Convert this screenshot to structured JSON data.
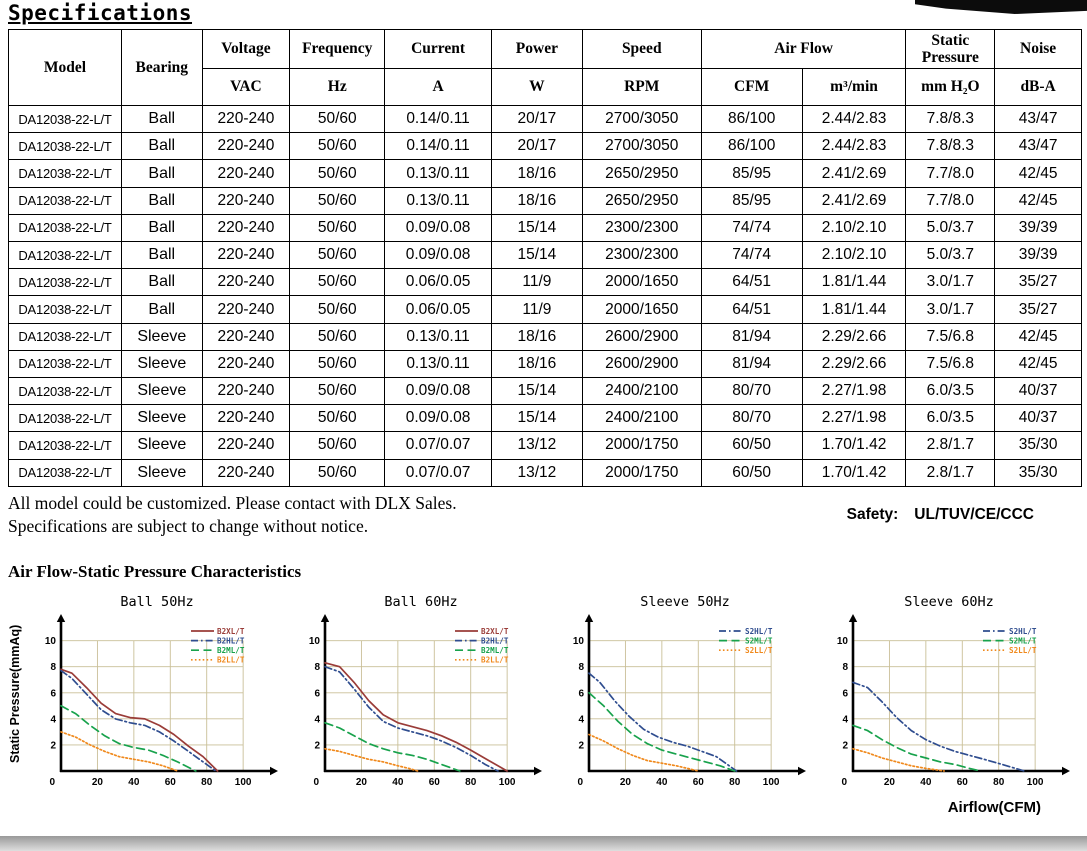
{
  "page": {
    "title": "Specifications"
  },
  "table": {
    "header_row1": [
      {
        "label": "Model",
        "rowspan": 2
      },
      {
        "label": "Bearing",
        "rowspan": 2
      },
      {
        "label": "Voltage"
      },
      {
        "label": "Frequency"
      },
      {
        "label": "Current"
      },
      {
        "label": "Power"
      },
      {
        "label": "Speed"
      },
      {
        "label": "Air Flow",
        "colspan": 2
      },
      {
        "label": "Static Pressure"
      },
      {
        "label": "Noise"
      }
    ],
    "header_row2": [
      "VAC",
      "Hz",
      "A",
      "W",
      "RPM",
      "CFM",
      "m³/min",
      "mm H₂O",
      "dB-A"
    ],
    "rows": [
      [
        "DA12038-22-L/T",
        "Ball",
        "220-240",
        "50/60",
        "0.14/0.11",
        "20/17",
        "2700/3050",
        "86/100",
        "2.44/2.83",
        "7.8/8.3",
        "43/47"
      ],
      [
        "DA12038-22-L/T",
        "Ball",
        "220-240",
        "50/60",
        "0.14/0.11",
        "20/17",
        "2700/3050",
        "86/100",
        "2.44/2.83",
        "7.8/8.3",
        "43/47"
      ],
      [
        "DA12038-22-L/T",
        "Ball",
        "220-240",
        "50/60",
        "0.13/0.11",
        "18/16",
        "2650/2950",
        "85/95",
        "2.41/2.69",
        "7.7/8.0",
        "42/45"
      ],
      [
        "DA12038-22-L/T",
        "Ball",
        "220-240",
        "50/60",
        "0.13/0.11",
        "18/16",
        "2650/2950",
        "85/95",
        "2.41/2.69",
        "7.7/8.0",
        "42/45"
      ],
      [
        "DA12038-22-L/T",
        "Ball",
        "220-240",
        "50/60",
        "0.09/0.08",
        "15/14",
        "2300/2300",
        "74/74",
        "2.10/2.10",
        "5.0/3.7",
        "39/39"
      ],
      [
        "DA12038-22-L/T",
        "Ball",
        "220-240",
        "50/60",
        "0.09/0.08",
        "15/14",
        "2300/2300",
        "74/74",
        "2.10/2.10",
        "5.0/3.7",
        "39/39"
      ],
      [
        "DA12038-22-L/T",
        "Ball",
        "220-240",
        "50/60",
        "0.06/0.05",
        "11/9",
        "2000/1650",
        "64/51",
        "1.81/1.44",
        "3.0/1.7",
        "35/27"
      ],
      [
        "DA12038-22-L/T",
        "Ball",
        "220-240",
        "50/60",
        "0.06/0.05",
        "11/9",
        "2000/1650",
        "64/51",
        "1.81/1.44",
        "3.0/1.7",
        "35/27"
      ],
      [
        "DA12038-22-L/T",
        "Sleeve",
        "220-240",
        "50/60",
        "0.13/0.11",
        "18/16",
        "2600/2900",
        "81/94",
        "2.29/2.66",
        "7.5/6.8",
        "42/45"
      ],
      [
        "DA12038-22-L/T",
        "Sleeve",
        "220-240",
        "50/60",
        "0.13/0.11",
        "18/16",
        "2600/2900",
        "81/94",
        "2.29/2.66",
        "7.5/6.8",
        "42/45"
      ],
      [
        "DA12038-22-L/T",
        "Sleeve",
        "220-240",
        "50/60",
        "0.09/0.08",
        "15/14",
        "2400/2100",
        "80/70",
        "2.27/1.98",
        "6.0/3.5",
        "40/37"
      ],
      [
        "DA12038-22-L/T",
        "Sleeve",
        "220-240",
        "50/60",
        "0.09/0.08",
        "15/14",
        "2400/2100",
        "80/70",
        "2.27/1.98",
        "6.0/3.5",
        "40/37"
      ],
      [
        "DA12038-22-L/T",
        "Sleeve",
        "220-240",
        "50/60",
        "0.07/0.07",
        "13/12",
        "2000/1750",
        "60/50",
        "1.70/1.42",
        "2.8/1.7",
        "35/30"
      ],
      [
        "DA12038-22-L/T",
        "Sleeve",
        "220-240",
        "50/60",
        "0.07/0.07",
        "13/12",
        "2000/1750",
        "60/50",
        "1.70/1.42",
        "2.8/1.7",
        "35/30"
      ]
    ]
  },
  "notes": {
    "line1": "All model could be customized. Please contact with DLX Sales.",
    "line2": "Specifications are subject to change without notice."
  },
  "safety": {
    "label": "Safety:",
    "value": "UL/TUV/CE/CCC"
  },
  "section": {
    "title": "Air Flow-Static Pressure Characteristics"
  },
  "chart_data": [
    {
      "type": "line",
      "title": "Ball 50Hz",
      "xlabel": "Airflow(CFM)",
      "ylabel": "Static Pressure(mmAq)",
      "xlim": [
        0,
        100
      ],
      "ylim": [
        0,
        10
      ],
      "xticks": [
        0,
        20,
        40,
        60,
        80,
        100
      ],
      "yticks": [
        2,
        4,
        6,
        8,
        10
      ],
      "grid": true,
      "legend_position": "top-right",
      "series": [
        {
          "name": "B2XL/T",
          "color": "#9a3c38",
          "style": "solid",
          "points": [
            [
              0,
              7.8
            ],
            [
              6,
              7.5
            ],
            [
              14,
              6.4
            ],
            [
              22,
              5.2
            ],
            [
              30,
              4.4
            ],
            [
              38,
              4.1
            ],
            [
              46,
              4.0
            ],
            [
              54,
              3.5
            ],
            [
              62,
              2.8
            ],
            [
              70,
              1.9
            ],
            [
              78,
              1.1
            ],
            [
              86,
              0
            ]
          ]
        },
        {
          "name": "B2HL/T",
          "color": "#2f4d8f",
          "style": "dashdot",
          "points": [
            [
              0,
              7.7
            ],
            [
              6,
              7.1
            ],
            [
              14,
              5.9
            ],
            [
              22,
              4.7
            ],
            [
              30,
              4.0
            ],
            [
              38,
              3.7
            ],
            [
              46,
              3.5
            ],
            [
              54,
              3.0
            ],
            [
              62,
              2.3
            ],
            [
              70,
              1.5
            ],
            [
              78,
              0.7
            ],
            [
              85,
              0
            ]
          ]
        },
        {
          "name": "B2ML/T",
          "color": "#18a24c",
          "style": "dashed",
          "points": [
            [
              0,
              5.0
            ],
            [
              8,
              4.4
            ],
            [
              16,
              3.5
            ],
            [
              24,
              2.7
            ],
            [
              32,
              2.1
            ],
            [
              40,
              1.8
            ],
            [
              48,
              1.6
            ],
            [
              56,
              1.2
            ],
            [
              64,
              0.7
            ],
            [
              74,
              0
            ]
          ]
        },
        {
          "name": "B2LL/T",
          "color": "#f0891c",
          "style": "dotted",
          "points": [
            [
              0,
              3.0
            ],
            [
              8,
              2.6
            ],
            [
              16,
              2.0
            ],
            [
              24,
              1.5
            ],
            [
              32,
              1.1
            ],
            [
              40,
              0.9
            ],
            [
              48,
              0.7
            ],
            [
              56,
              0.4
            ],
            [
              64,
              0
            ]
          ]
        }
      ]
    },
    {
      "type": "line",
      "title": "Ball 60Hz",
      "xlabel": "Airflow(CFM)",
      "ylabel": "Static Pressure(mmAq)",
      "xlim": [
        0,
        100
      ],
      "ylim": [
        0,
        10
      ],
      "xticks": [
        0,
        20,
        40,
        60,
        80,
        100
      ],
      "yticks": [
        2,
        4,
        6,
        8,
        10
      ],
      "grid": true,
      "legend_position": "top-right",
      "series": [
        {
          "name": "B2XL/T",
          "color": "#9a3c38",
          "style": "solid",
          "points": [
            [
              0,
              8.3
            ],
            [
              8,
              8.0
            ],
            [
              16,
              6.8
            ],
            [
              24,
              5.4
            ],
            [
              32,
              4.3
            ],
            [
              40,
              3.7
            ],
            [
              48,
              3.4
            ],
            [
              56,
              3.1
            ],
            [
              64,
              2.7
            ],
            [
              72,
              2.2
            ],
            [
              80,
              1.6
            ],
            [
              90,
              0.8
            ],
            [
              100,
              0
            ]
          ]
        },
        {
          "name": "B2HL/T",
          "color": "#2f4d8f",
          "style": "dashdot",
          "points": [
            [
              0,
              8.0
            ],
            [
              8,
              7.6
            ],
            [
              16,
              6.3
            ],
            [
              24,
              4.9
            ],
            [
              32,
              3.8
            ],
            [
              40,
              3.3
            ],
            [
              48,
              3.0
            ],
            [
              56,
              2.7
            ],
            [
              64,
              2.3
            ],
            [
              72,
              1.8
            ],
            [
              80,
              1.2
            ],
            [
              88,
              0.5
            ],
            [
              95,
              0
            ]
          ]
        },
        {
          "name": "B2ML/T",
          "color": "#18a24c",
          "style": "dashed",
          "points": [
            [
              0,
              3.7
            ],
            [
              8,
              3.3
            ],
            [
              16,
              2.7
            ],
            [
              24,
              2.1
            ],
            [
              32,
              1.7
            ],
            [
              40,
              1.4
            ],
            [
              48,
              1.2
            ],
            [
              56,
              0.9
            ],
            [
              64,
              0.5
            ],
            [
              74,
              0
            ]
          ]
        },
        {
          "name": "B2LL/T",
          "color": "#f0891c",
          "style": "dotted",
          "points": [
            [
              0,
              1.7
            ],
            [
              8,
              1.5
            ],
            [
              16,
              1.2
            ],
            [
              24,
              0.9
            ],
            [
              32,
              0.7
            ],
            [
              40,
              0.4
            ],
            [
              46,
              0.2
            ],
            [
              51,
              0
            ]
          ]
        }
      ]
    },
    {
      "type": "line",
      "title": "Sleeve 50Hz",
      "xlabel": "Airflow(CFM)",
      "ylabel": "Static Pressure(mmAq)",
      "xlim": [
        0,
        100
      ],
      "ylim": [
        0,
        10
      ],
      "xticks": [
        0,
        20,
        40,
        60,
        80,
        100
      ],
      "yticks": [
        2,
        4,
        6,
        8,
        10
      ],
      "grid": true,
      "legend_position": "top-right",
      "series": [
        {
          "name": "S2HL/T",
          "color": "#2f4d8f",
          "style": "dashdot",
          "points": [
            [
              0,
              7.5
            ],
            [
              6,
              6.8
            ],
            [
              14,
              5.4
            ],
            [
              22,
              4.2
            ],
            [
              30,
              3.2
            ],
            [
              38,
              2.6
            ],
            [
              46,
              2.2
            ],
            [
              54,
              1.9
            ],
            [
              62,
              1.5
            ],
            [
              70,
              1.1
            ],
            [
              81,
              0
            ]
          ]
        },
        {
          "name": "S2ML/T",
          "color": "#18a24c",
          "style": "dashed",
          "points": [
            [
              0,
              6.0
            ],
            [
              8,
              5.0
            ],
            [
              16,
              3.8
            ],
            [
              24,
              2.8
            ],
            [
              32,
              2.1
            ],
            [
              40,
              1.6
            ],
            [
              48,
              1.3
            ],
            [
              56,
              1.0
            ],
            [
              64,
              0.7
            ],
            [
              72,
              0.4
            ],
            [
              80,
              0
            ]
          ]
        },
        {
          "name": "S2LL/T",
          "color": "#f0891c",
          "style": "dotted",
          "points": [
            [
              0,
              2.8
            ],
            [
              8,
              2.3
            ],
            [
              16,
              1.7
            ],
            [
              24,
              1.2
            ],
            [
              32,
              0.8
            ],
            [
              40,
              0.6
            ],
            [
              48,
              0.4
            ],
            [
              54,
              0.2
            ],
            [
              60,
              0
            ]
          ]
        }
      ]
    },
    {
      "type": "line",
      "title": "Sleeve 60Hz",
      "xlabel": "Airflow(CFM)",
      "ylabel": "Static Pressure(mmAq)",
      "xlim": [
        0,
        100
      ],
      "ylim": [
        0,
        10
      ],
      "xticks": [
        0,
        20,
        40,
        60,
        80,
        100
      ],
      "yticks": [
        2,
        4,
        6,
        8,
        10
      ],
      "grid": true,
      "legend_position": "top-right",
      "series": [
        {
          "name": "S2HL/T",
          "color": "#2f4d8f",
          "style": "dashdot",
          "points": [
            [
              0,
              6.8
            ],
            [
              8,
              6.4
            ],
            [
              16,
              5.3
            ],
            [
              24,
              4.1
            ],
            [
              32,
              3.1
            ],
            [
              40,
              2.4
            ],
            [
              48,
              1.9
            ],
            [
              56,
              1.5
            ],
            [
              64,
              1.2
            ],
            [
              72,
              0.9
            ],
            [
              82,
              0.5
            ],
            [
              94,
              0
            ]
          ]
        },
        {
          "name": "S2ML/T",
          "color": "#18a24c",
          "style": "dashed",
          "points": [
            [
              0,
              3.5
            ],
            [
              8,
              3.1
            ],
            [
              16,
              2.4
            ],
            [
              24,
              1.8
            ],
            [
              32,
              1.3
            ],
            [
              40,
              1.0
            ],
            [
              48,
              0.7
            ],
            [
              56,
              0.5
            ],
            [
              64,
              0.2
            ],
            [
              70,
              0
            ]
          ]
        },
        {
          "name": "S2LL/T",
          "color": "#f0891c",
          "style": "dotted",
          "points": [
            [
              0,
              1.7
            ],
            [
              8,
              1.4
            ],
            [
              16,
              1.0
            ],
            [
              24,
              0.7
            ],
            [
              32,
              0.4
            ],
            [
              40,
              0.2
            ],
            [
              50,
              0
            ]
          ]
        }
      ]
    }
  ]
}
